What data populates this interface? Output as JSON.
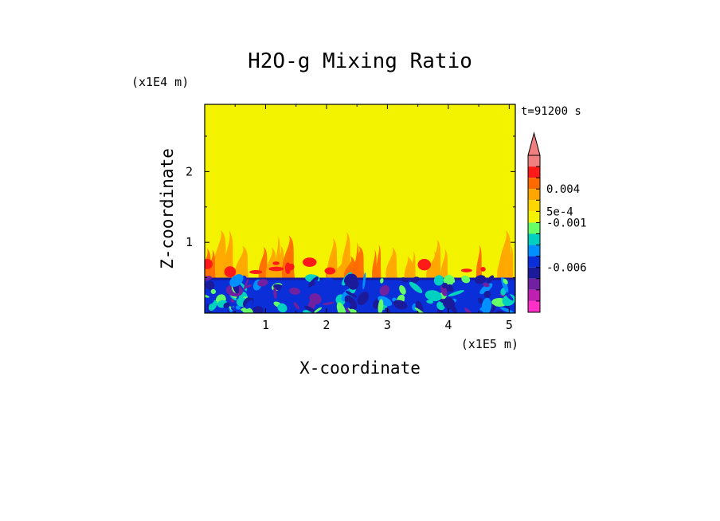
{
  "chart_data": {
    "type": "heatmap",
    "title": "H2O-g Mixing Ratio",
    "xlabel": "X-coordinate",
    "ylabel": "Z-coordinate",
    "x_scale_label": "(x1E5 m)",
    "y_scale_label": "(x1E4 m)",
    "time_label": "t=91200 s",
    "xlim": [
      0,
      5.1
    ],
    "ylim": [
      0,
      2.95
    ],
    "x_ticks": [
      "1",
      "2",
      "3",
      "4",
      "5"
    ],
    "y_ticks": [
      "1",
      "2"
    ],
    "colorbar": {
      "labels": [
        "0.004",
        "5e-4",
        "-0.001",
        "-0.006"
      ],
      "colors": [
        "#f08080",
        "#ff1a1a",
        "#ff6a00",
        "#ffa500",
        "#ffd700",
        "#f3f300",
        "#66ff66",
        "#00d0c0",
        "#0090ff",
        "#0a2ed8",
        "#1a1a9a",
        "#7020a0",
        "#c020b0",
        "#ff30c8"
      ]
    },
    "layers": [
      {
        "name": "background",
        "z_range": [
          0.55,
          2.95
        ],
        "color": "#f3f300"
      },
      {
        "name": "turbulent top",
        "z_range": [
          0.5,
          1.0
        ],
        "color": "#ffa500"
      },
      {
        "name": "boundary layer",
        "z_range": [
          0.0,
          0.5
        ],
        "color": "#0a2ed8"
      }
    ]
  }
}
